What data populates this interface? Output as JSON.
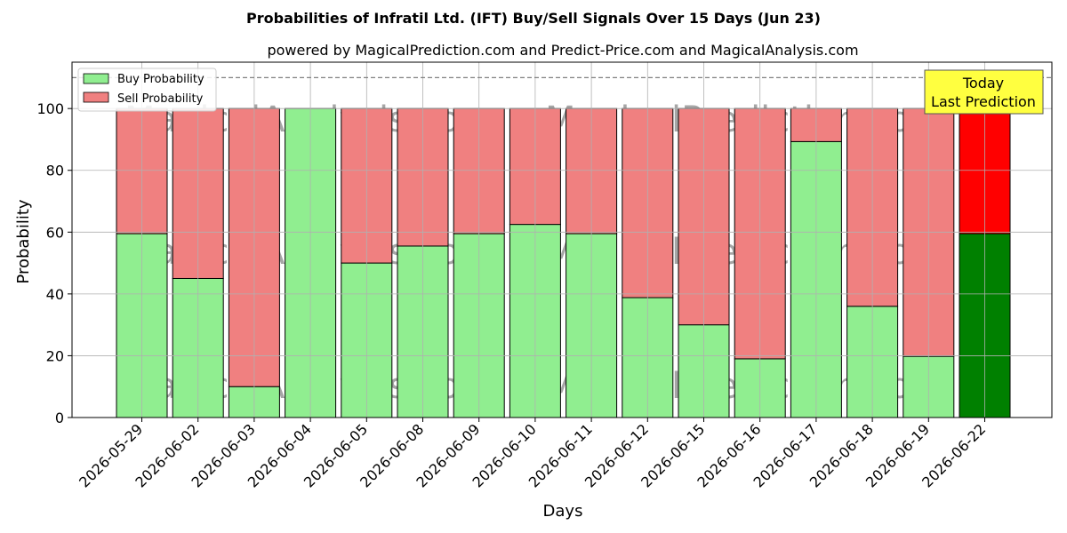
{
  "chart_data": {
    "type": "bar",
    "stacked": true,
    "title": "Probabilities of Infratil Ltd. (IFT) Buy/Sell Signals Over 15 Days (Jun 23)",
    "subtitle": "powered by MagicalPrediction.com and Predict-Price.com and MagicalAnalysis.com",
    "xlabel": "Days",
    "ylabel": "Probability",
    "ylim": [
      0,
      115
    ],
    "yticks": [
      0,
      20,
      40,
      60,
      80,
      100
    ],
    "reference_line": 110,
    "grid": true,
    "legend_position": "top-left",
    "categories": [
      "2026-05-29",
      "2026-06-02",
      "2026-06-03",
      "2026-06-04",
      "2026-06-05",
      "2026-06-08",
      "2026-06-09",
      "2026-06-10",
      "2026-06-11",
      "2026-06-12",
      "2026-06-15",
      "2026-06-16",
      "2026-06-17",
      "2026-06-18",
      "2026-06-19",
      "2026-06-22"
    ],
    "series": [
      {
        "name": "Buy Probability",
        "color": "#90ee90",
        "highlight_color": "#008000",
        "values": [
          59.5,
          45,
          10,
          100,
          50,
          55.5,
          59.5,
          62.5,
          59.5,
          38.8,
          30,
          19,
          89.3,
          36,
          19.8,
          59.5
        ]
      },
      {
        "name": "Sell Probability",
        "color": "#f08080",
        "highlight_color": "#ff0000",
        "values": [
          40.5,
          55,
          90,
          0,
          50,
          44.5,
          40.5,
          37.5,
          40.5,
          61.2,
          70,
          81,
          10.7,
          64,
          80.2,
          40.5
        ]
      }
    ],
    "highlight_index": 15,
    "annotation": {
      "lines": [
        "Today",
        "Last Prediction"
      ],
      "background": "#ffff40"
    },
    "watermarks": [
      "MagicalAnalysis.com",
      "MagicalPrediction.com"
    ]
  }
}
